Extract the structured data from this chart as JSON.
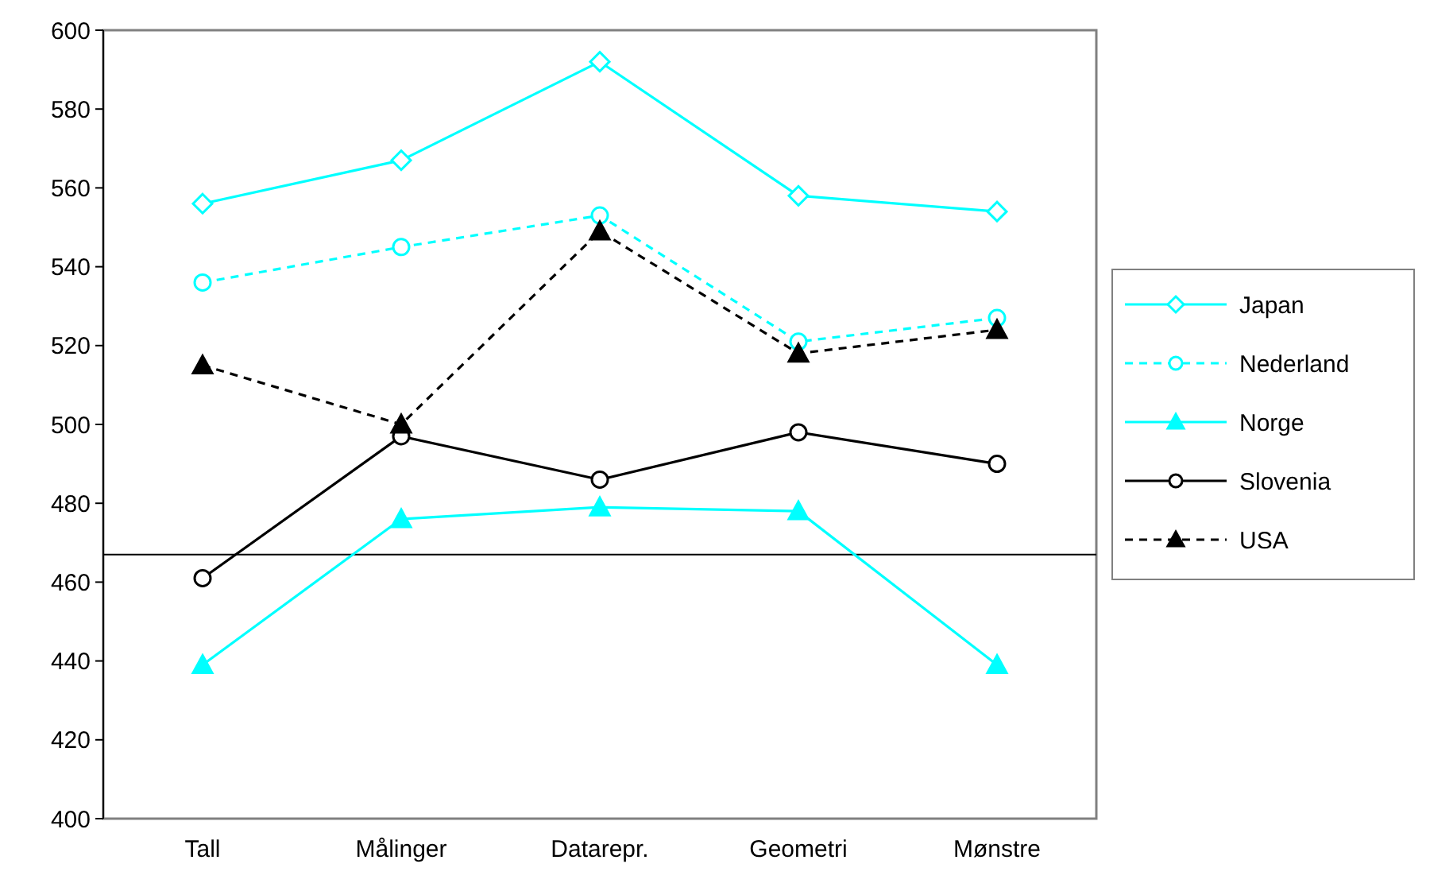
{
  "chart_data": {
    "type": "line",
    "categories": [
      "Tall",
      "Målinger",
      "Datarepr.",
      "Geometri",
      "Mønstre"
    ],
    "series": [
      {
        "name": "Japan",
        "color": "#00ffff",
        "values": [
          556,
          567,
          592,
          558,
          554
        ],
        "marker": "diamond",
        "line_style": "solid"
      },
      {
        "name": "Nederland",
        "color": "#00ffff",
        "values": [
          536,
          545,
          553,
          521,
          527
        ],
        "marker": "circle",
        "line_style": "dashed"
      },
      {
        "name": "Norge",
        "color": "#00ffff",
        "values": [
          439,
          476,
          479,
          478,
          439
        ],
        "marker": "triangle",
        "line_style": "solid"
      },
      {
        "name": "Slovenia",
        "color": "#000000",
        "values": [
          461,
          497,
          486,
          498,
          490
        ],
        "marker": "circle",
        "line_style": "solid"
      },
      {
        "name": "USA",
        "color": "#000000",
        "values": [
          515,
          500,
          549,
          518,
          524
        ],
        "marker": "triangle",
        "line_style": "dashed"
      }
    ],
    "ylim": [
      400,
      600
    ],
    "yticks": [
      400,
      420,
      440,
      460,
      480,
      500,
      520,
      540,
      560,
      580,
      600
    ],
    "ref_lines": [
      {
        "axis": "y",
        "value": 467,
        "color": "#000000"
      }
    ],
    "grid": false,
    "legend": "right"
  }
}
